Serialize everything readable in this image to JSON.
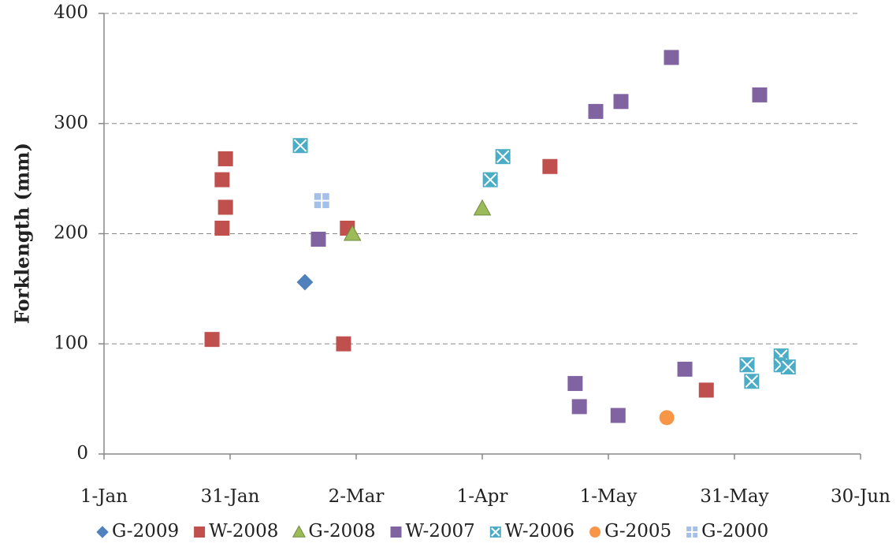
{
  "chart_data": {
    "type": "scatter",
    "y_label": "Forklength (mm)",
    "xlim": [
      0,
      180
    ],
    "xticks": [
      {
        "value": 0,
        "label": "1-Jan"
      },
      {
        "value": 30,
        "label": "31-Jan"
      },
      {
        "value": 60,
        "label": "2-Mar"
      },
      {
        "value": 90,
        "label": "1-Apr"
      },
      {
        "value": 120,
        "label": "1-May"
      },
      {
        "value": 150,
        "label": "31-May"
      },
      {
        "value": 180,
        "label": "30-Jun"
      }
    ],
    "ylim": [
      0,
      400
    ],
    "yticks": [
      0,
      100,
      200,
      300,
      400
    ],
    "grid": true,
    "legend": "bottom",
    "series": [
      {
        "name": "G-2009",
        "color": "#4f81bd",
        "marker": "diamond",
        "x": [
          47.8
        ],
        "values": [
          156
        ]
      },
      {
        "name": "W-2008",
        "color": "#c0504d",
        "marker": "square",
        "x": [
          28.9,
          28.1,
          28.9,
          28.1,
          25.7,
          57.9,
          57,
          106.1,
          143.3
        ],
        "values": [
          268,
          249,
          224,
          205,
          104,
          205,
          100,
          261,
          58
        ]
      },
      {
        "name": "G-2008",
        "color": "#9bbb59",
        "marker": "triangle",
        "x": [
          59.1,
          90
        ],
        "values": [
          200,
          223
        ]
      },
      {
        "name": "W-2007",
        "color": "#8064a2",
        "marker": "square",
        "x": [
          51,
          117,
          123,
          135,
          156,
          112.1,
          113.1,
          122.3,
          138.2
        ],
        "values": [
          195,
          311,
          320,
          360,
          326,
          64,
          43,
          35,
          77
        ]
      },
      {
        "name": "W-2006",
        "color": "#4bacc6",
        "marker": "square-x",
        "x": [
          46.7,
          91.9,
          94.9,
          153,
          154.1,
          161.1,
          161.1,
          162.8
        ],
        "values": [
          280,
          249,
          270,
          81,
          66,
          89,
          81,
          79
        ]
      },
      {
        "name": "G-2005",
        "color": "#f79646",
        "marker": "circle",
        "x": [
          133.9
        ],
        "values": [
          33
        ]
      },
      {
        "name": "G-2000",
        "color": "#a5c0e8",
        "marker": "square-plus",
        "x": [
          51.8
        ],
        "values": [
          230
        ]
      }
    ]
  }
}
